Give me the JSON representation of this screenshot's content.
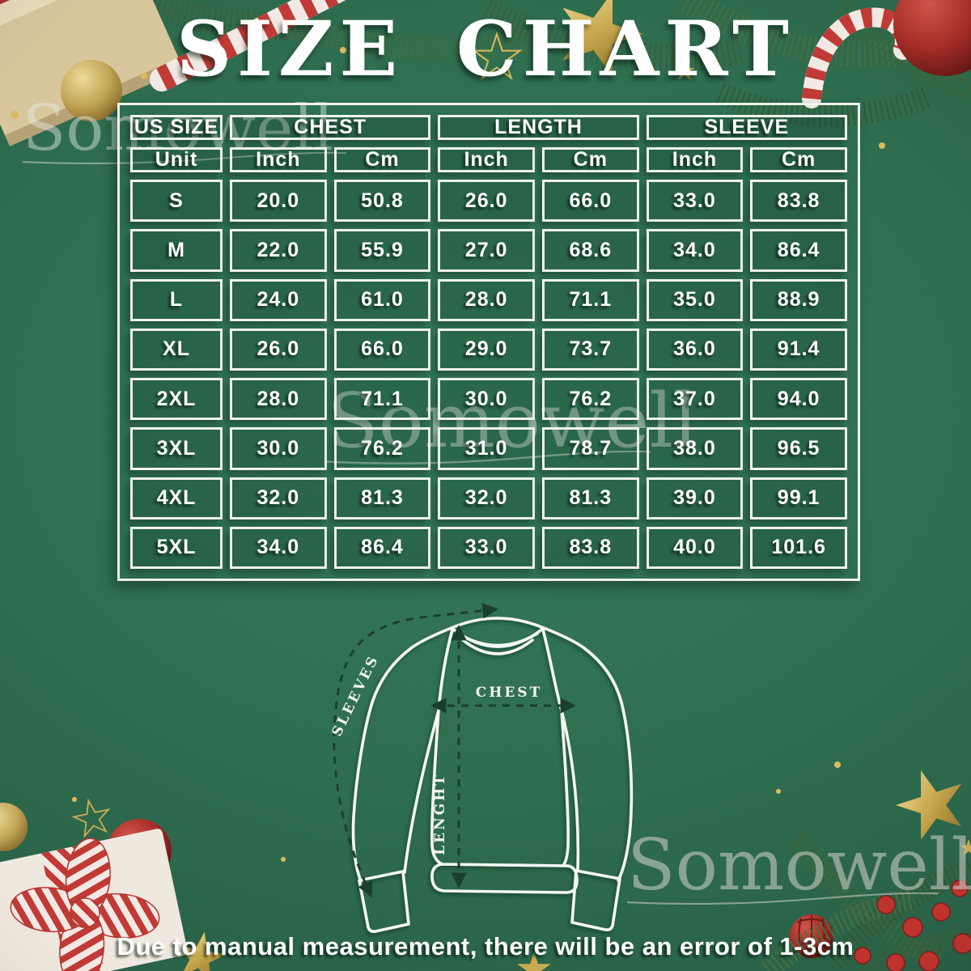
{
  "header": {
    "title": "SIZE CHART"
  },
  "watermark": {
    "text": "Somowell"
  },
  "size_table": {
    "group_labels": [
      "US SIZE",
      "CHEST",
      "LENGTH",
      "SLEEVE"
    ],
    "unit_labels": [
      "Unit",
      "Inch",
      "Cm",
      "Inch",
      "Cm",
      "Inch",
      "Cm"
    ],
    "rows": [
      {
        "size": "S",
        "values": [
          "20.0",
          "50.8",
          "26.0",
          "66.0",
          "33.0",
          "83.8"
        ]
      },
      {
        "size": "M",
        "values": [
          "22.0",
          "55.9",
          "27.0",
          "68.6",
          "34.0",
          "86.4"
        ]
      },
      {
        "size": "L",
        "values": [
          "24.0",
          "61.0",
          "28.0",
          "71.1",
          "35.0",
          "88.9"
        ]
      },
      {
        "size": "XL",
        "values": [
          "26.0",
          "66.0",
          "29.0",
          "73.7",
          "36.0",
          "91.4"
        ]
      },
      {
        "size": "2XL",
        "values": [
          "28.0",
          "71.1",
          "30.0",
          "76.2",
          "37.0",
          "94.0"
        ]
      },
      {
        "size": "3XL",
        "values": [
          "30.0",
          "76.2",
          "31.0",
          "78.7",
          "38.0",
          "96.5"
        ]
      },
      {
        "size": "4XL",
        "values": [
          "32.0",
          "81.3",
          "32.0",
          "81.3",
          "39.0",
          "99.1"
        ]
      },
      {
        "size": "5XL",
        "values": [
          "34.0",
          "86.4",
          "33.0",
          "83.8",
          "40.0",
          "101.6"
        ]
      }
    ]
  },
  "diagram": {
    "sleeves_label": "SLEEVES",
    "chest_label": "CHEST",
    "length_label": "LENGHT"
  },
  "footer": {
    "note": "Due to manual measurement, there will be an error of 1-3cm"
  },
  "colors": {
    "background_green": "#2e6b4e",
    "table_line_white": "#eef3ec",
    "text_white": "#ffffff",
    "accent_red": "#b23434",
    "accent_gold": "#c9a94e",
    "arrow_dark_green": "#1b3f2e"
  },
  "chart_data": {
    "type": "table",
    "title": "SIZE CHART",
    "columns": [
      "US SIZE",
      "CHEST (Inch)",
      "CHEST (Cm)",
      "LENGTH (Inch)",
      "LENGTH (Cm)",
      "SLEEVE (Inch)",
      "SLEEVE (Cm)"
    ],
    "rows": [
      [
        "S",
        20.0,
        50.8,
        26.0,
        66.0,
        33.0,
        83.8
      ],
      [
        "M",
        22.0,
        55.9,
        27.0,
        68.6,
        34.0,
        86.4
      ],
      [
        "L",
        24.0,
        61.0,
        28.0,
        71.1,
        35.0,
        88.9
      ],
      [
        "XL",
        26.0,
        66.0,
        29.0,
        73.7,
        36.0,
        91.4
      ],
      [
        "2XL",
        28.0,
        71.1,
        30.0,
        76.2,
        37.0,
        94.0
      ],
      [
        "3XL",
        30.0,
        76.2,
        31.0,
        78.7,
        38.0,
        96.5
      ],
      [
        "4XL",
        32.0,
        81.3,
        32.0,
        81.3,
        39.0,
        99.1
      ],
      [
        "5XL",
        34.0,
        86.4,
        33.0,
        83.8,
        40.0,
        101.6
      ]
    ],
    "note": "Due to manual measurement, there will be an error of 1-3cm"
  }
}
